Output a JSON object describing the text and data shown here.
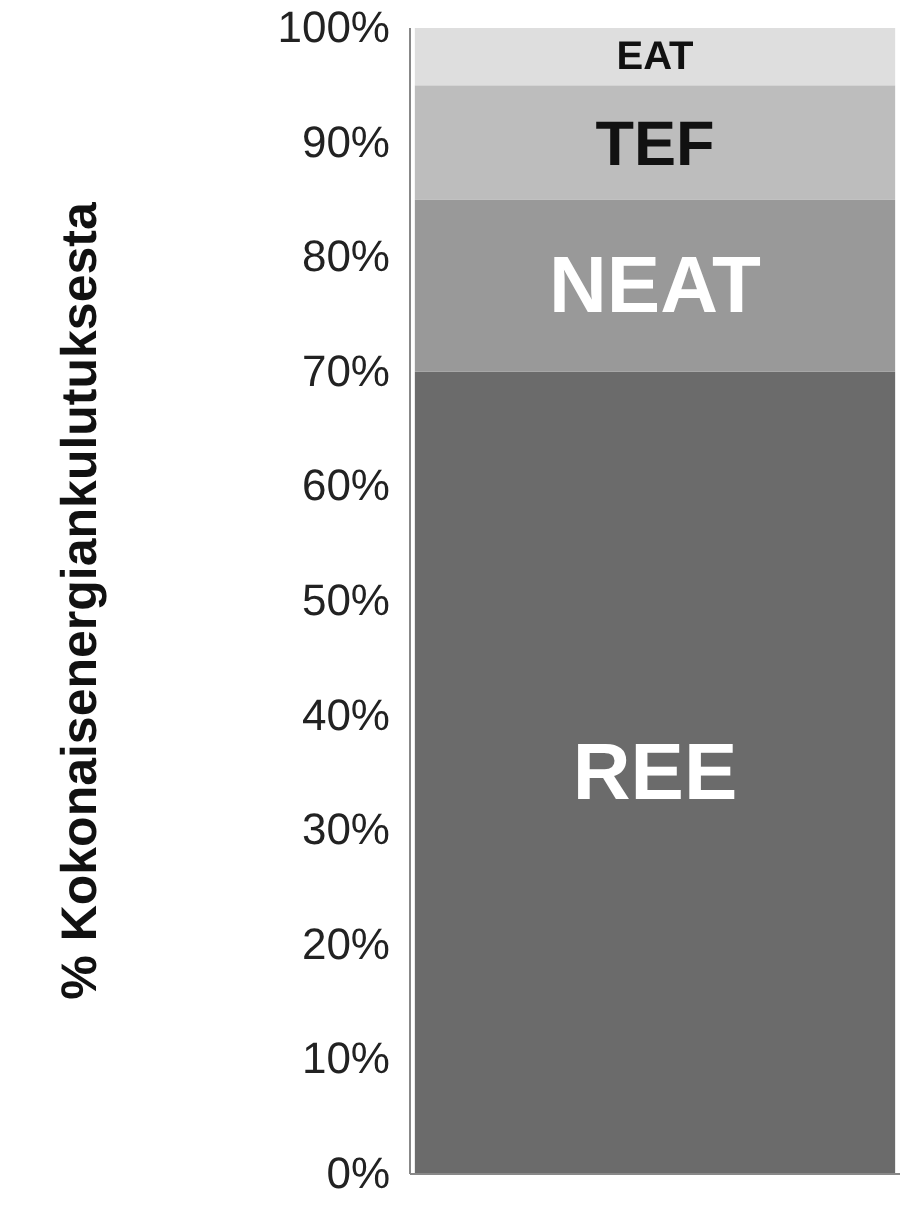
{
  "chart_data": {
    "type": "bar",
    "stacked": true,
    "ylabel": "% Kokonaisenergiankulutuksesta",
    "categories": [
      null
    ],
    "series": [
      {
        "name": "REE",
        "color": "#6b6b6b",
        "values": [
          70
        ]
      },
      {
        "name": "NEAT",
        "color": "#999999",
        "values": [
          15
        ]
      },
      {
        "name": "TEF",
        "color": "#bdbdbd",
        "values": [
          10
        ]
      },
      {
        "name": "EAT",
        "color": "#dedede",
        "values": [
          5
        ]
      }
    ],
    "ylim": [
      0,
      100
    ],
    "yticks": [
      {
        "value": 0,
        "label": "0%"
      },
      {
        "value": 10,
        "label": "10%"
      },
      {
        "value": 20,
        "label": "20%"
      },
      {
        "value": 30,
        "label": "30%"
      },
      {
        "value": 40,
        "label": "40%"
      },
      {
        "value": 50,
        "label": "50%"
      },
      {
        "value": 60,
        "label": "60%"
      },
      {
        "value": 70,
        "label": "70%"
      },
      {
        "value": 80,
        "label": "80%"
      },
      {
        "value": 90,
        "label": "90%"
      },
      {
        "value": 100,
        "label": "100%"
      }
    ],
    "grid": false
  }
}
